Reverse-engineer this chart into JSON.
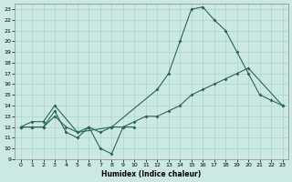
{
  "title": "",
  "xlabel": "Humidex (Indice chaleur)",
  "bg_color": "#cce8e4",
  "grid_color": "#aad4cc",
  "line_color": "#2a6655",
  "xlim": [
    -0.5,
    23.5
  ],
  "ylim": [
    9,
    23.5
  ],
  "yticks": [
    9,
    10,
    11,
    12,
    13,
    14,
    15,
    16,
    17,
    18,
    19,
    20,
    21,
    22,
    23
  ],
  "xticks": [
    0,
    1,
    2,
    3,
    4,
    5,
    6,
    7,
    8,
    9,
    10,
    11,
    12,
    13,
    14,
    15,
    16,
    17,
    18,
    19,
    20,
    21,
    22,
    23
  ],
  "line1_x": [
    0,
    1,
    2,
    3,
    4,
    5,
    6,
    7,
    8,
    9,
    10
  ],
  "line1_y": [
    12,
    12,
    12,
    13.5,
    11.5,
    11,
    12,
    10,
    9.5,
    12,
    12
  ],
  "line2_x": [
    0,
    1,
    2,
    3,
    5,
    8,
    12,
    13,
    14,
    15,
    16,
    17,
    18,
    19,
    20,
    21,
    22,
    23
  ],
  "line2_y": [
    12,
    12.5,
    12.5,
    14,
    11.5,
    12,
    15.5,
    17,
    20,
    23,
    23.2,
    22,
    21,
    19,
    17,
    15,
    14.5,
    14
  ],
  "line3_x": [
    0,
    1,
    2,
    3,
    4,
    5,
    6,
    7,
    8,
    9,
    10,
    11,
    12,
    13,
    14,
    15,
    16,
    17,
    18,
    19,
    20,
    23
  ],
  "line3_y": [
    12,
    12,
    12,
    13,
    12,
    11.5,
    12,
    11.5,
    12,
    12,
    12.5,
    13,
    13,
    13.5,
    14,
    15,
    15.5,
    16,
    16.5,
    17,
    17.5,
    14
  ]
}
